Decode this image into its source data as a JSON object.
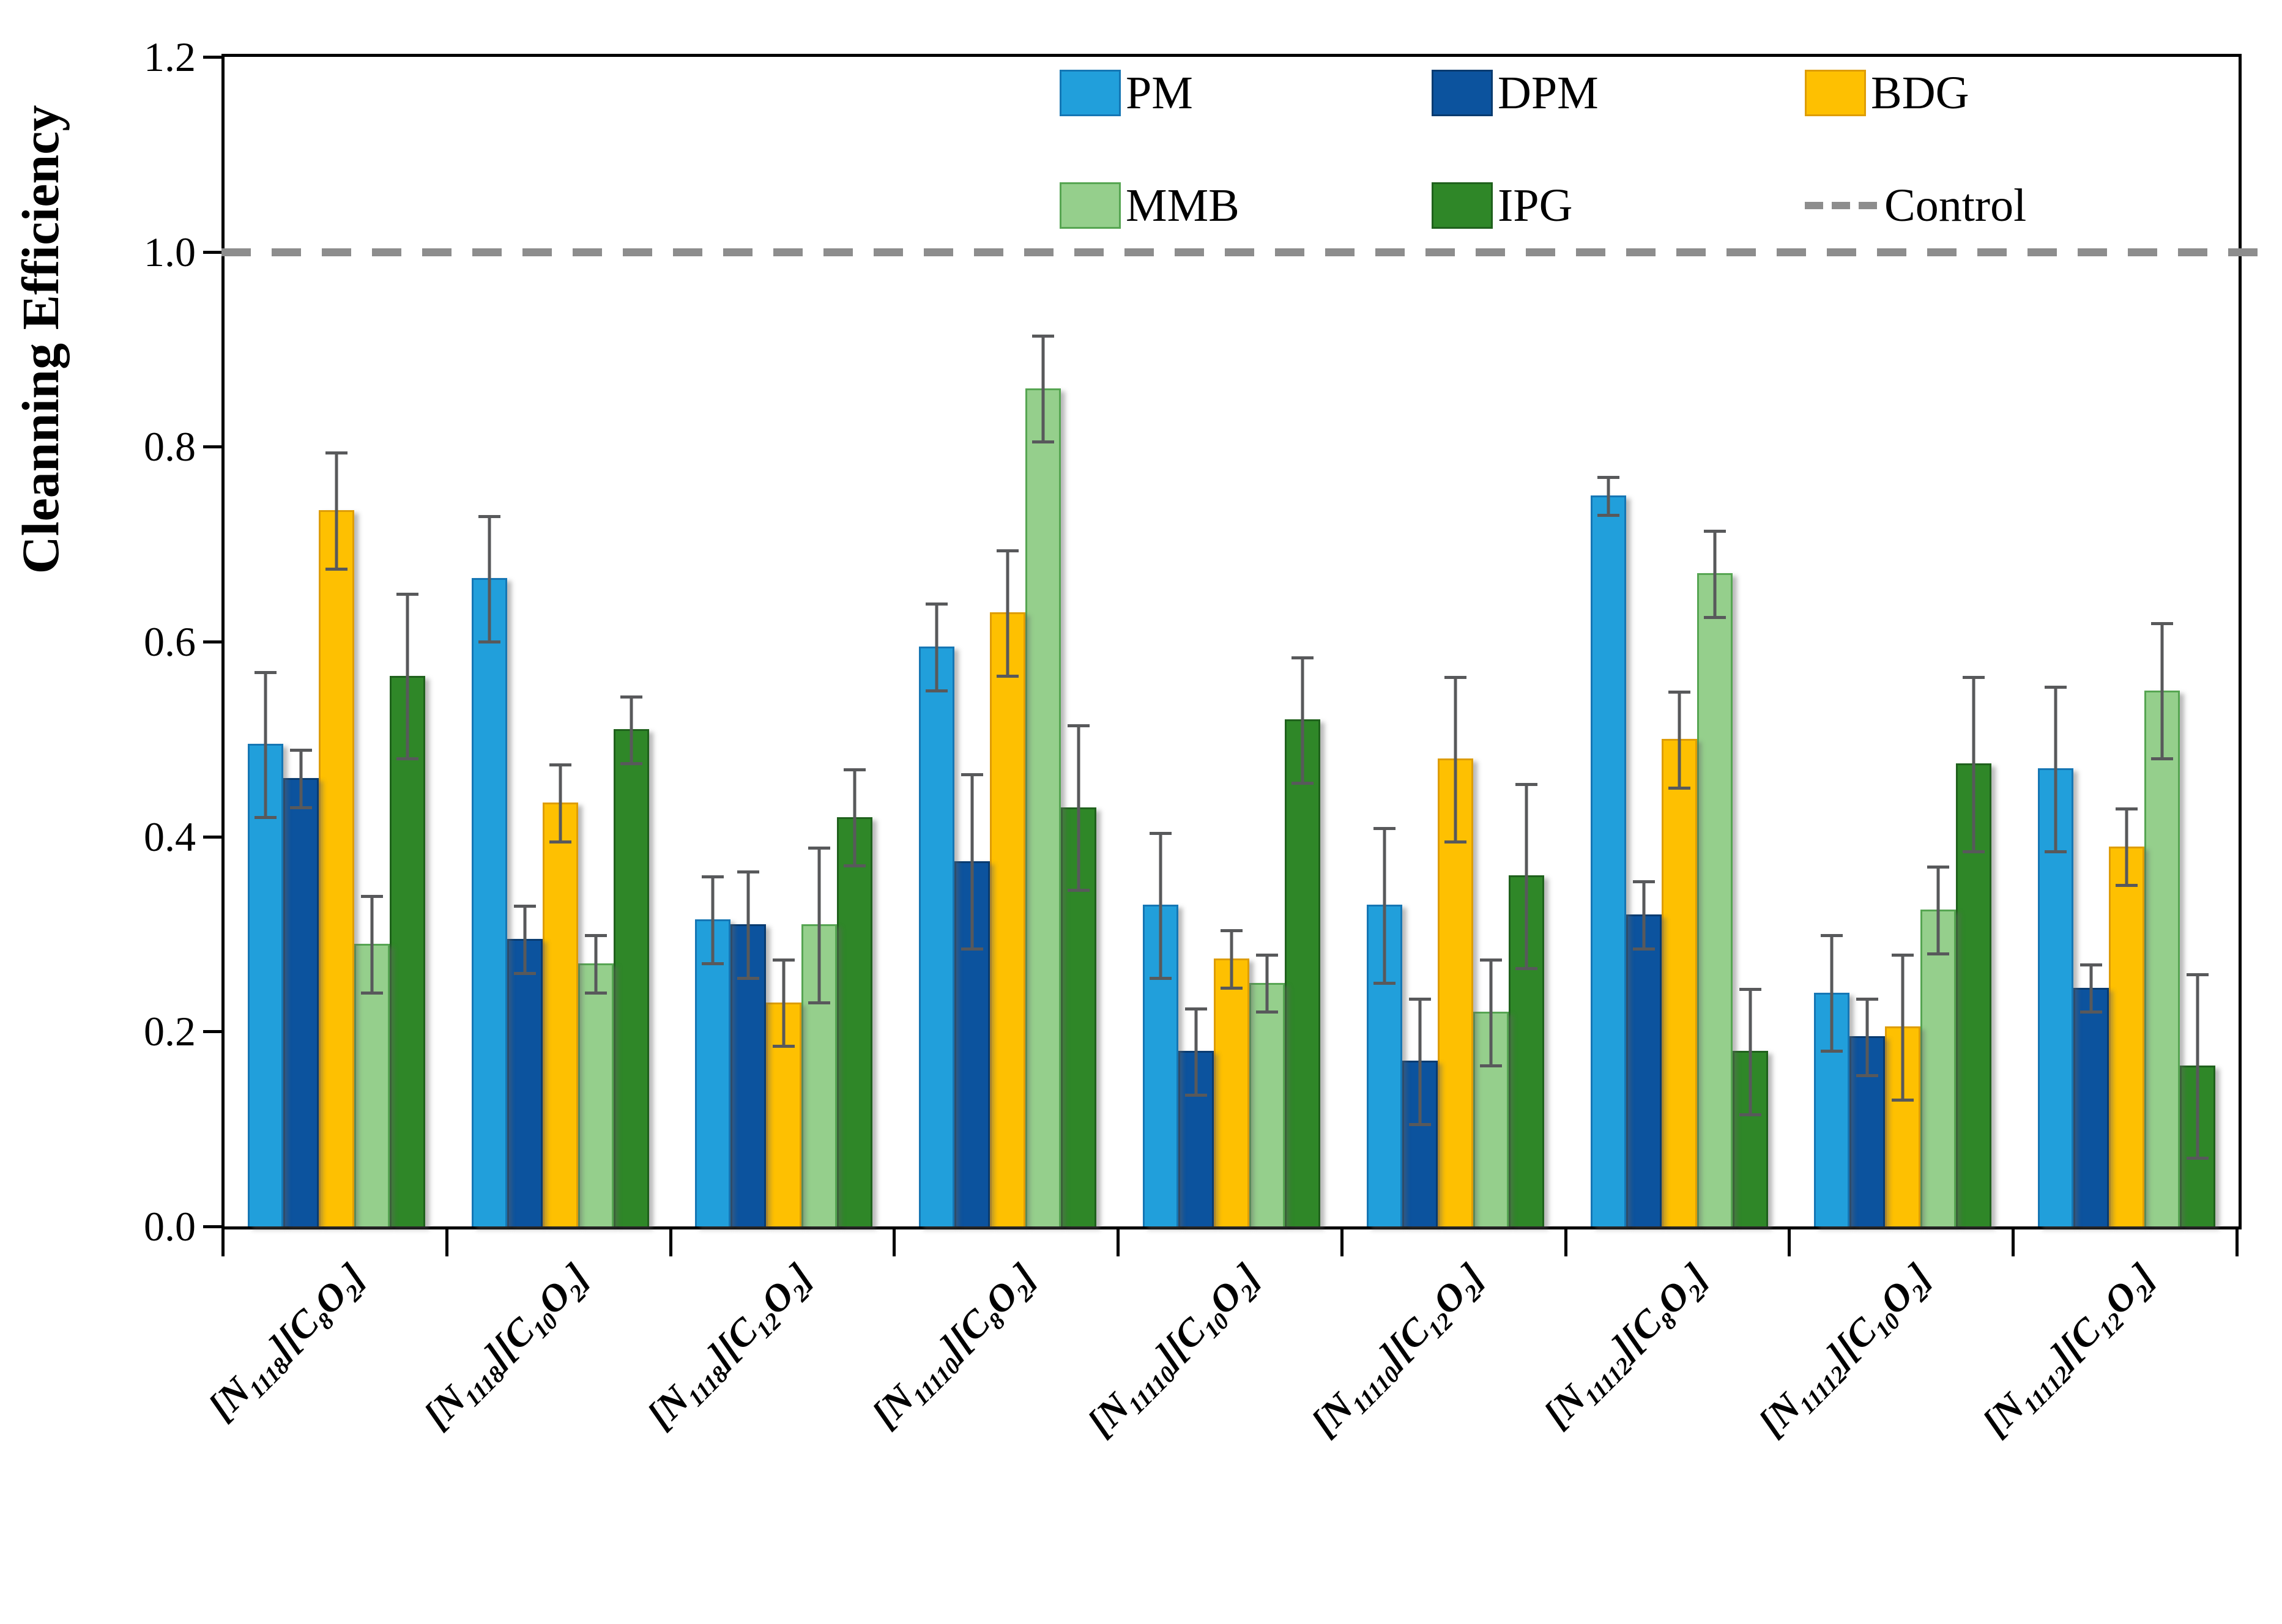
{
  "chart_data": {
    "type": "bar",
    "title": "",
    "ylabel": "Cleanning Efficiency",
    "xlabel": "",
    "ylim": [
      0,
      1.2
    ],
    "yticks": [
      "0.0",
      "0.2",
      "0.4",
      "0.6",
      "0.8",
      "1.0",
      "1.2"
    ],
    "grid": false,
    "legend_position": "top-inside",
    "categories": [
      "[N_{1118}][C_{8}O_{2}]",
      "[N_{1118}][C_{10}O_{2}]",
      "[N_{1118}][C_{12}O_{2}]",
      "[N_{11110}][C_{8}O_{2}]",
      "[N_{11110}][C_{10}O_{2}]",
      "[N_{11110}][C_{12}O_{2}]",
      "[N_{11112}][C_{8}O_{2}]",
      "[N_{11112}][C_{10}O_{2}]",
      "[N_{11112}][C_{12}O_{2}]"
    ],
    "series": [
      {
        "name": "PM",
        "color": "#219FDB",
        "border": "#1576B4",
        "values": [
          0.495,
          0.665,
          0.315,
          0.595,
          0.33,
          0.33,
          0.75,
          0.24,
          0.47
        ],
        "errors": [
          0.075,
          0.065,
          0.045,
          0.045,
          0.075,
          0.08,
          0.02,
          0.06,
          0.085
        ]
      },
      {
        "name": "DPM",
        "color": "#0C539E",
        "border": "#093B70",
        "values": [
          0.46,
          0.295,
          0.31,
          0.375,
          0.18,
          0.17,
          0.32,
          0.195,
          0.245
        ],
        "errors": [
          0.03,
          0.035,
          0.055,
          0.09,
          0.045,
          0.065,
          0.035,
          0.04,
          0.025
        ]
      },
      {
        "name": "BDG",
        "color": "#FEC001",
        "border": "#DE9D07",
        "values": [
          0.735,
          0.435,
          0.23,
          0.63,
          0.275,
          0.48,
          0.5,
          0.205,
          0.39
        ],
        "errors": [
          0.06,
          0.04,
          0.045,
          0.065,
          0.03,
          0.085,
          0.05,
          0.075,
          0.04
        ]
      },
      {
        "name": "MMB",
        "color": "#95CF8C",
        "border": "#56A552",
        "values": [
          0.29,
          0.27,
          0.31,
          0.86,
          0.25,
          0.22,
          0.67,
          0.325,
          0.55
        ],
        "errors": [
          0.05,
          0.03,
          0.08,
          0.055,
          0.03,
          0.055,
          0.045,
          0.045,
          0.07
        ]
      },
      {
        "name": "IPG",
        "color": "#2F8728",
        "border": "#1F611C",
        "values": [
          0.565,
          0.51,
          0.42,
          0.43,
          0.52,
          0.36,
          0.18,
          0.475,
          0.165
        ],
        "errors": [
          0.085,
          0.035,
          0.05,
          0.085,
          0.065,
          0.095,
          0.065,
          0.09,
          0.095
        ]
      }
    ],
    "control_line": {
      "label": "Control",
      "value": 1.0,
      "color": "#8D8D8D"
    },
    "error_bar_color": "#58595B",
    "axis_color": "#000000"
  }
}
